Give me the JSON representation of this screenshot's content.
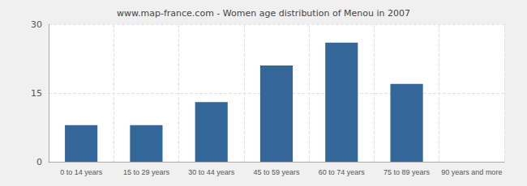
{
  "chart_data": {
    "type": "bar",
    "title": "www.map-france.com - Women age distribution of Menou in 2007",
    "categories": [
      "0 to 14 years",
      "15 to 29 years",
      "30 to 44 years",
      "45 to 59 years",
      "60 to 74 years",
      "75 to 89 years",
      "90 years and more"
    ],
    "values": [
      8,
      8,
      13,
      21,
      26,
      17,
      0
    ],
    "color": "#336699",
    "ylim": [
      0,
      30
    ],
    "yticks": [
      0,
      15,
      30
    ],
    "grid": true
  }
}
